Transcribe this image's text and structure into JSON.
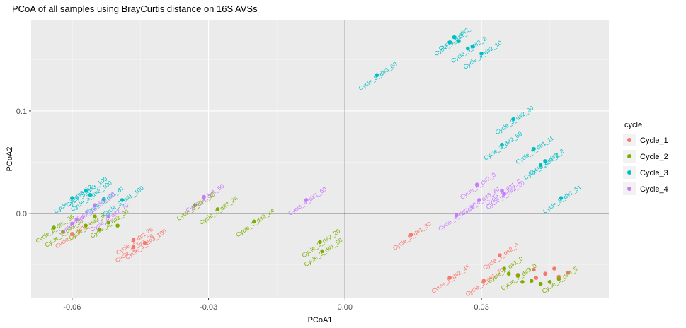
{
  "chart_data": {
    "type": "scatter",
    "title": "PCoA of all samples using BrayCurtis distance on 16S AVSs",
    "xlabel": "PCoA1",
    "ylabel": "PCoA2",
    "xlim": [
      -0.069,
      0.058
    ],
    "ylim": [
      -0.083,
      0.189
    ],
    "x_ticks": [
      -0.06,
      -0.03,
      0.0,
      0.03
    ],
    "x_tick_labels": [
      "-0.06",
      "-0.03",
      "0.00",
      "0.03"
    ],
    "y_ticks": [
      0.0,
      0.1
    ],
    "y_tick_labels": [
      "0.0",
      "0.1"
    ],
    "reference_lines": {
      "x": 0,
      "y": 0
    },
    "grid": true,
    "background": "#ebebeb",
    "legend": {
      "title": "cycle",
      "position": "right",
      "entries": [
        "Cycle_1",
        "Cycle_2",
        "Cycle_3",
        "Cycle_4"
      ]
    },
    "series": [
      {
        "name": "Cycle_1",
        "color": "#F8766D",
        "points": [
          {
            "x": -0.0465,
            "y": -0.026,
            "label": "Cycle_1_d#1.76"
          },
          {
            "x": -0.0465,
            "y": -0.033,
            "label": "Cycle_1_d#3_76"
          },
          {
            "x": -0.044,
            "y": -0.029,
            "label": "Cycle_1_d#3_100"
          },
          {
            "x": -0.06,
            "y": -0.02,
            "label": "Cycle_1_d#1_4"
          },
          {
            "x": 0.0145,
            "y": -0.021,
            "label": "Cycle_1_d#1_30"
          },
          {
            "x": 0.023,
            "y": -0.063,
            "label": "Cycle_1_d#2_45"
          },
          {
            "x": 0.0305,
            "y": -0.066,
            "label": "Cycle_1_d#1_70"
          },
          {
            "x": 0.034,
            "y": -0.041,
            "label": "Cycle_1_d#2_0"
          },
          {
            "x": 0.0415,
            "y": -0.055,
            "label": ""
          },
          {
            "x": 0.044,
            "y": -0.059,
            "label": ""
          },
          {
            "x": 0.047,
            "y": -0.062,
            "label": ""
          },
          {
            "x": 0.049,
            "y": -0.058,
            "label": ""
          },
          {
            "x": 0.042,
            "y": -0.063,
            "label": ""
          },
          {
            "x": 0.046,
            "y": -0.054,
            "label": ""
          },
          {
            "x": 0.038,
            "y": -0.06,
            "label": ""
          }
        ]
      },
      {
        "name": "Cycle_2",
        "color": "#7CAE00",
        "points": [
          {
            "x": -0.033,
            "y": 0.008,
            "label": "Cycle_2_d#1_38"
          },
          {
            "x": -0.028,
            "y": 0.004,
            "label": "Cycle_2_d#3_24"
          },
          {
            "x": -0.02,
            "y": -0.008,
            "label": "Cycle_2_d#2_24"
          },
          {
            "x": -0.0055,
            "y": -0.028,
            "label": "Cycle_2_d#2_20"
          },
          {
            "x": -0.005,
            "y": -0.037,
            "label": "Cycle_2_d#1_50"
          },
          {
            "x": -0.064,
            "y": -0.014,
            "label": "Cycle_2_d#2_35"
          },
          {
            "x": -0.062,
            "y": -0.018,
            "label": "Cycle_2_d#3_35"
          },
          {
            "x": -0.057,
            "y": -0.012,
            "label": "Cycle_2_d#2_6"
          },
          {
            "x": -0.052,
            "y": -0.009,
            "label": "Cycle_2_d#2_30"
          },
          {
            "x": -0.054,
            "y": -0.016,
            "label": ""
          },
          {
            "x": -0.055,
            "y": -0.003,
            "label": ""
          },
          {
            "x": -0.05,
            "y": -0.012,
            "label": ""
          },
          {
            "x": 0.035,
            "y": -0.054,
            "label": "Cycle_2_d#1_0"
          },
          {
            "x": 0.038,
            "y": -0.061,
            "label": "Cycle_2_d#3_0"
          },
          {
            "x": 0.041,
            "y": -0.066,
            "label": ""
          },
          {
            "x": 0.043,
            "y": -0.069,
            "label": ""
          },
          {
            "x": 0.045,
            "y": -0.067,
            "label": ""
          },
          {
            "x": 0.047,
            "y": -0.064,
            "label": "Cycle_2_d#4_5"
          },
          {
            "x": 0.039,
            "y": -0.067,
            "label": ""
          },
          {
            "x": 0.036,
            "y": -0.059,
            "label": ""
          }
        ]
      },
      {
        "name": "Cycle_3",
        "color": "#00BFC4",
        "points": [
          {
            "x": -0.06,
            "y": 0.015,
            "label": "Cycle_3_d#3_52"
          },
          {
            "x": -0.057,
            "y": 0.022,
            "label": "Cycle_3_d#3_100"
          },
          {
            "x": -0.056,
            "y": 0.018,
            "label": "Cycle_3_d#2_100"
          },
          {
            "x": -0.053,
            "y": 0.014,
            "label": "Cycle_3_d#1_81"
          },
          {
            "x": -0.049,
            "y": 0.013,
            "label": "Cycle_3_d#1_100"
          },
          {
            "x": 0.007,
            "y": 0.135,
            "label": "Cycle_3_d#3_60"
          },
          {
            "x": 0.023,
            "y": 0.167,
            "label": "Cycle_3_d#1_"
          },
          {
            "x": 0.024,
            "y": 0.172,
            "label": "Cycle_3_d#2_"
          },
          {
            "x": 0.025,
            "y": 0.168,
            "label": ""
          },
          {
            "x": 0.027,
            "y": 0.161,
            "label": "Cycle_3_d#2_2"
          },
          {
            "x": 0.028,
            "y": 0.163,
            "label": ""
          },
          {
            "x": 0.03,
            "y": 0.156,
            "label": "Cycle_3_d#2_10"
          },
          {
            "x": 0.037,
            "y": 0.092,
            "label": "Cycle_3_d#2_20"
          },
          {
            "x": 0.0345,
            "y": 0.067,
            "label": "Cycle_3_d#2_60"
          },
          {
            "x": 0.0415,
            "y": 0.063,
            "label": "Cycle_3_d#1_11"
          },
          {
            "x": 0.043,
            "y": 0.047,
            "label": "Cycle_3_d#1_2"
          },
          {
            "x": 0.044,
            "y": 0.051,
            "label": "Cycle_3_d#2_2"
          },
          {
            "x": 0.0475,
            "y": 0.015,
            "label": "Cycle_3_d#1_51"
          }
        ]
      },
      {
        "name": "Cycle_4",
        "color": "#C77CFF",
        "points": [
          {
            "x": -0.031,
            "y": 0.016,
            "label": "Cycle_4_d#1_50"
          },
          {
            "x": -0.0085,
            "y": 0.013,
            "label": "Cycle_4_d#1_60"
          },
          {
            "x": -0.059,
            "y": -0.006,
            "label": "Cycle_4_d#2_15"
          },
          {
            "x": -0.055,
            "y": 0.008,
            "label": "Cycle_4_d#3_10"
          },
          {
            "x": -0.052,
            "y": -0.003,
            "label": "Cycle_4_d#2_70"
          },
          {
            "x": -0.06,
            "y": -0.01,
            "label": ""
          },
          {
            "x": 0.0245,
            "y": -0.002,
            "label": "Cycle_4_d#2_10"
          },
          {
            "x": 0.029,
            "y": 0.028,
            "label": "Cycle_4_d#2_0"
          },
          {
            "x": 0.0295,
            "y": 0.013,
            "label": "Cycle_4_d#3_30"
          },
          {
            "x": 0.0345,
            "y": 0.022,
            "label": "Cycle_4_d#1_0"
          },
          {
            "x": 0.035,
            "y": 0.019,
            "label": "Cycle_4_d#2_20"
          }
        ]
      }
    ]
  }
}
